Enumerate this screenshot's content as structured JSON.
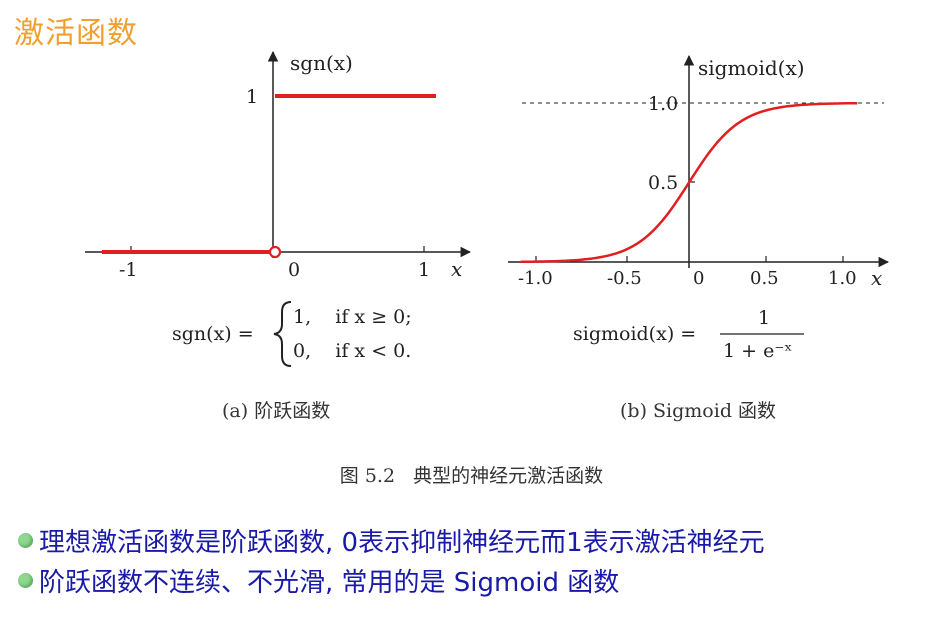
{
  "slide_title": "激活函数",
  "left_figure": {
    "y_axis_label": "sgn(x)",
    "x_axis_label": "x",
    "x_ticks": [
      "-1",
      "0",
      "1"
    ],
    "y_tick": "1",
    "formula_lhs": "sgn(x) =",
    "case1": "1,    if x ≥ 0;",
    "case2": "0,    if x < 0.",
    "subcaption": "(a) 阶跃函数"
  },
  "right_figure": {
    "y_axis_label": "sigmoid(x)",
    "x_axis_label": "x",
    "x_ticks": [
      "-1.0",
      "-0.5",
      "0",
      "0.5",
      "1.0"
    ],
    "y_ticks": [
      "1.0",
      "0.5"
    ],
    "formula_lhs": "sigmoid(x) =",
    "formula_num": "1",
    "formula_den": "1 + e⁻ˣ",
    "subcaption": "(b) Sigmoid 函数"
  },
  "figure_caption": "图 5.2   典型的神经元激活函数",
  "bullets": [
    "理想激活函数是阶跃函数, 0表示抑制神经元而1表示激活神经元",
    "阶跃函数不连续、不光滑, 常用的是 Sigmoid 函数"
  ],
  "colors": {
    "title": "#f0a030",
    "curve": "#e02020",
    "bullet_text": "#1a1aa8"
  }
}
